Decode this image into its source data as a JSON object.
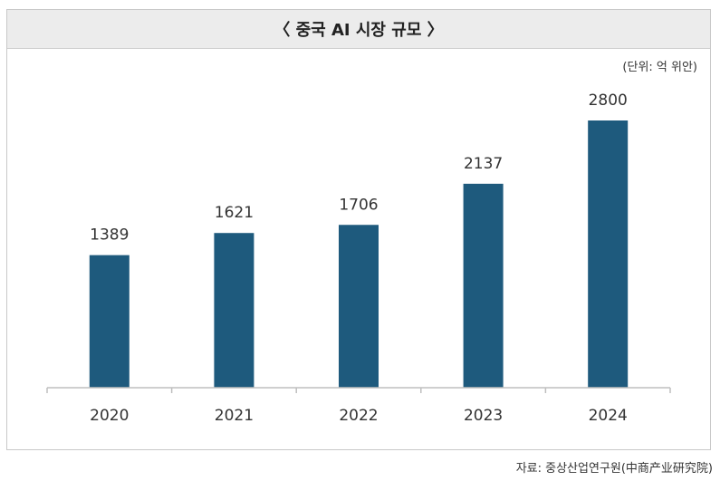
{
  "chart_data": {
    "type": "bar",
    "title": "〈 중국 AI 시장 규모 〉",
    "unit_note": "(단위: 억 위안)",
    "source": "자료: 중상산업연구원(中商产业研究院)",
    "categories": [
      "2020",
      "2021",
      "2022",
      "2023",
      "2024"
    ],
    "values": [
      1389,
      1621,
      1706,
      2137,
      2800
    ],
    "ylim": [
      0,
      3000
    ],
    "bar_color": "#1e5a7d",
    "axis_color": "#bfbfbf",
    "grid": false,
    "legend": "none"
  }
}
